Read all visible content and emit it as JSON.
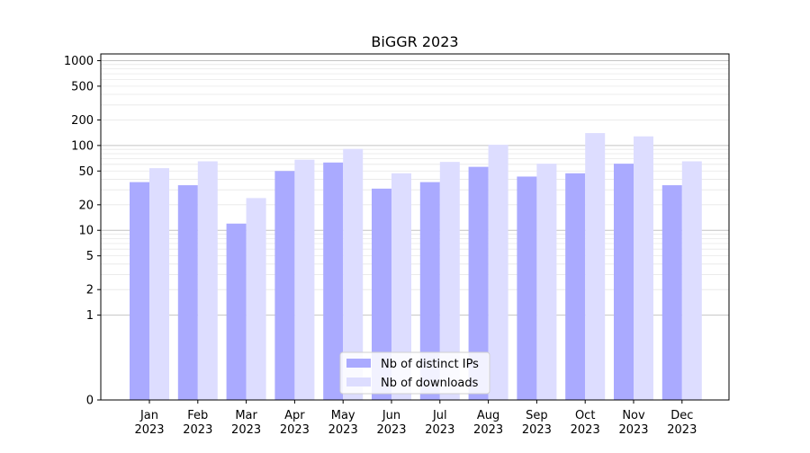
{
  "chart_data": {
    "type": "bar",
    "title": "BiGGR 2023",
    "xlabel": "",
    "ylabel": "",
    "y_scale": "symlog",
    "ylim": [
      0,
      1200
    ],
    "grid": true,
    "legend_position": "lower-center",
    "categories": [
      [
        "Jan",
        "2023"
      ],
      [
        "Feb",
        "2023"
      ],
      [
        "Mar",
        "2023"
      ],
      [
        "Apr",
        "2023"
      ],
      [
        "May",
        "2023"
      ],
      [
        "Jun",
        "2023"
      ],
      [
        "Jul",
        "2023"
      ],
      [
        "Aug",
        "2023"
      ],
      [
        "Sep",
        "2023"
      ],
      [
        "Oct",
        "2023"
      ],
      [
        "Nov",
        "2023"
      ],
      [
        "Dec",
        "2023"
      ]
    ],
    "yticks": [
      0,
      1,
      2,
      5,
      10,
      20,
      50,
      100,
      200,
      500,
      1000
    ],
    "series": [
      {
        "name": "Nb of distinct IPs",
        "color": "#aaaaff",
        "values": [
          37,
          34,
          12,
          50,
          63,
          31,
          37,
          56,
          43,
          47,
          61,
          34
        ]
      },
      {
        "name": "Nb of downloads",
        "color": "#ddddff",
        "values": [
          54,
          65,
          24,
          68,
          91,
          47,
          64,
          102,
          61,
          140,
          128,
          65
        ]
      }
    ]
  }
}
